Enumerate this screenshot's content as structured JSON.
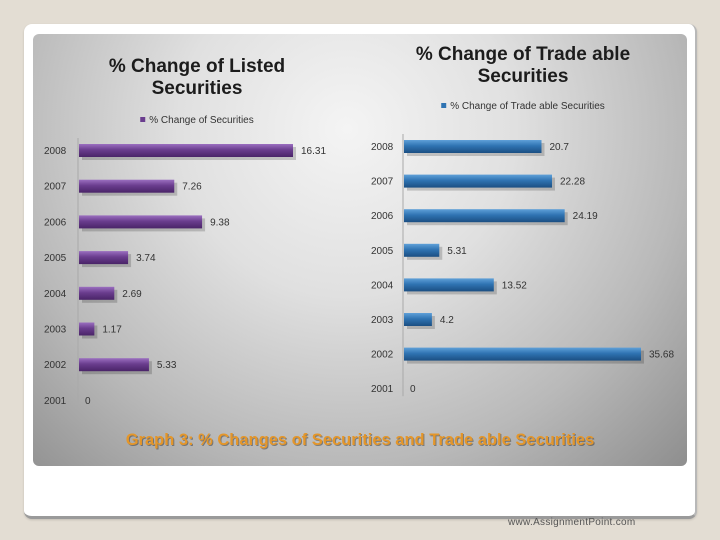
{
  "chart_data": [
    {
      "type": "bar",
      "orientation": "horizontal",
      "title": "% Change of Listed Securities",
      "title_lines": [
        "% Change of Listed",
        "Securities"
      ],
      "legend": "% Change of Securities",
      "categories": [
        "2008",
        "2007",
        "2006",
        "2005",
        "2004",
        "2003",
        "2002",
        "2001"
      ],
      "values": [
        16.31,
        7.26,
        9.38,
        3.74,
        2.69,
        1.17,
        5.33,
        0
      ],
      "value_labels": [
        "16.31",
        "7.26",
        "9.38",
        "3.74",
        "2.69",
        "1.17",
        "5.33",
        "0"
      ],
      "xlim": [
        0,
        18
      ],
      "color": "#6a3d8e"
    },
    {
      "type": "bar",
      "orientation": "horizontal",
      "title": "% Change of Trade able Securities",
      "title_lines": [
        "% Change of Trade able",
        "Securities"
      ],
      "legend": "% Change of Trade able Securities",
      "categories": [
        "2008",
        "2007",
        "2006",
        "2005",
        "2004",
        "2003",
        "2002",
        "2001"
      ],
      "values": [
        20.7,
        22.28,
        24.19,
        5.31,
        13.52,
        4.2,
        35.68,
        0
      ],
      "value_labels": [
        "20.7",
        "22.28",
        "24.19",
        "5.31",
        "13.52",
        "4.2",
        "35.68",
        "0"
      ],
      "xlim": [
        0,
        37
      ],
      "color": "#2f73b2"
    }
  ],
  "caption": "Graph 3: % Changes of Securities and Trade able Securities",
  "footer": "www.AssignmentPoint.com"
}
